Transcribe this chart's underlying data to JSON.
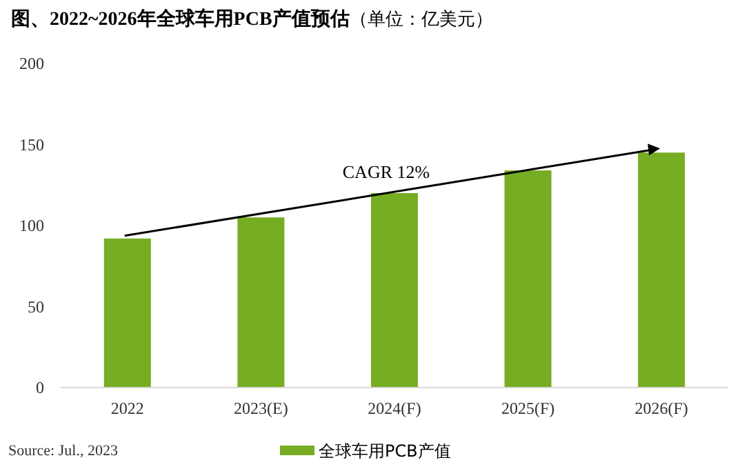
{
  "chart_data": {
    "type": "bar",
    "title": "图、2022~2026年全球车用PCB产值预估",
    "subtitle": "（单位：亿美元）",
    "categories": [
      "2022",
      "2023(E)",
      "2024(F)",
      "2025(F)",
      "2026(F)"
    ],
    "series": [
      {
        "name": "全球车用PCB产值",
        "color": "#76ad22",
        "values": [
          92,
          105,
          120,
          134,
          145
        ]
      }
    ],
    "ylim": [
      0,
      200
    ],
    "yticks": [
      0,
      50,
      100,
      150,
      200
    ],
    "grid": false,
    "legend": "bottom",
    "annotations": [
      "CAGR 12%",
      "Source: Jul., 2023"
    ]
  }
}
